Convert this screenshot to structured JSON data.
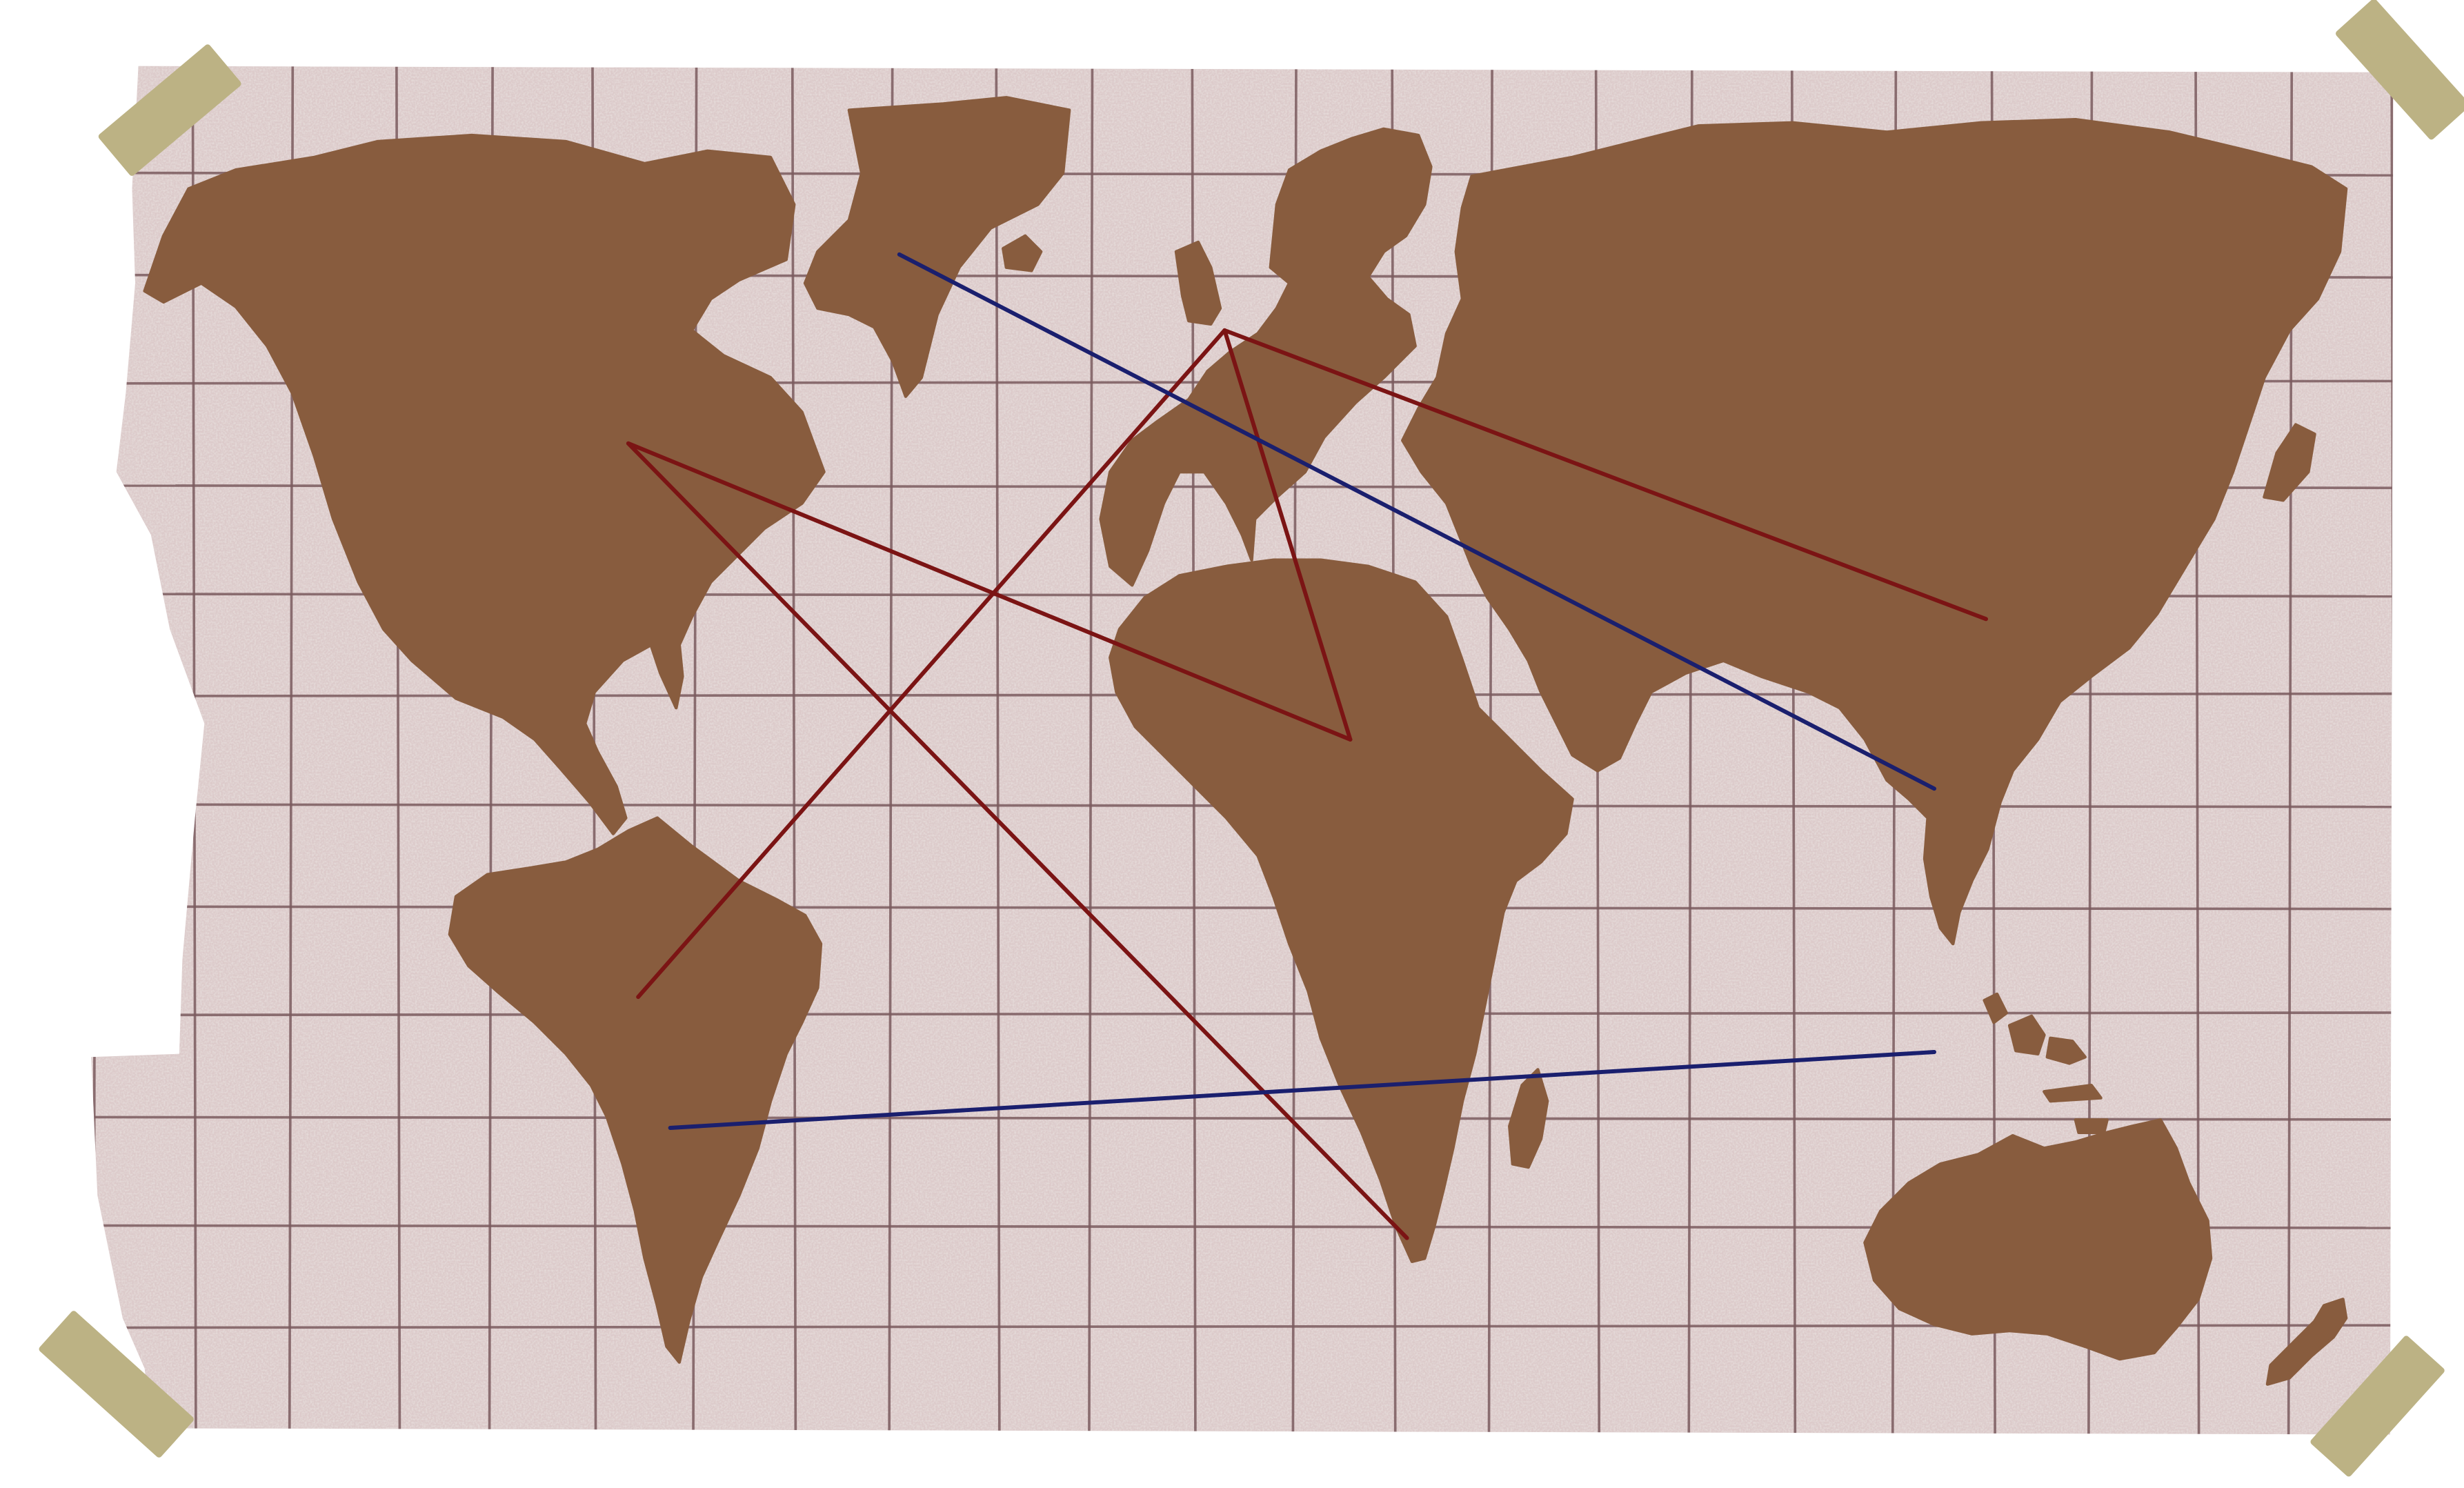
{
  "map": {
    "style": "hand-drawn world map on grid paper taped at corners",
    "colors": {
      "page_background": "#ffffff",
      "paper": "#dccaca",
      "paper_speckle": "#c9b3b1",
      "grid_line": "#7a5a5e",
      "land": "#885c3e",
      "tape": "#bcb284",
      "route_red": "#7b1414",
      "route_blue": "#1a1f6e"
    },
    "grid": {
      "columns": 23,
      "rows": 13
    },
    "continents": [
      "north-america",
      "greenland",
      "south-america",
      "europe",
      "africa",
      "madagascar",
      "asia",
      "japan",
      "indonesia",
      "australia",
      "new-zealand",
      "iceland",
      "uk"
    ],
    "tapes": [
      "tape-top-left",
      "tape-top-right",
      "tape-bottom-left",
      "tape-bottom-right"
    ],
    "routes": [
      {
        "name": "route-1",
        "color_key": "route_red",
        "from": [
          0.255,
          0.298
        ],
        "to": [
          0.548,
          0.497
        ]
      },
      {
        "name": "route-2",
        "color_key": "route_red",
        "from": [
          0.255,
          0.298
        ],
        "to": [
          0.571,
          0.832
        ]
      },
      {
        "name": "route-3",
        "color_key": "route_red",
        "from": [
          0.259,
          0.67
        ],
        "to": [
          0.497,
          0.222
        ]
      },
      {
        "name": "route-4",
        "color_key": "route_red",
        "from": [
          0.497,
          0.222
        ],
        "to": [
          0.548,
          0.497
        ]
      },
      {
        "name": "route-5",
        "color_key": "route_red",
        "from": [
          0.497,
          0.222
        ],
        "to": [
          0.806,
          0.416
        ]
      },
      {
        "name": "route-6",
        "color_key": "route_blue",
        "from": [
          0.365,
          0.171
        ],
        "to": [
          0.785,
          0.53
        ]
      },
      {
        "name": "route-7",
        "color_key": "route_blue",
        "from": [
          0.272,
          0.758
        ],
        "to": [
          0.785,
          0.707
        ]
      }
    ]
  }
}
